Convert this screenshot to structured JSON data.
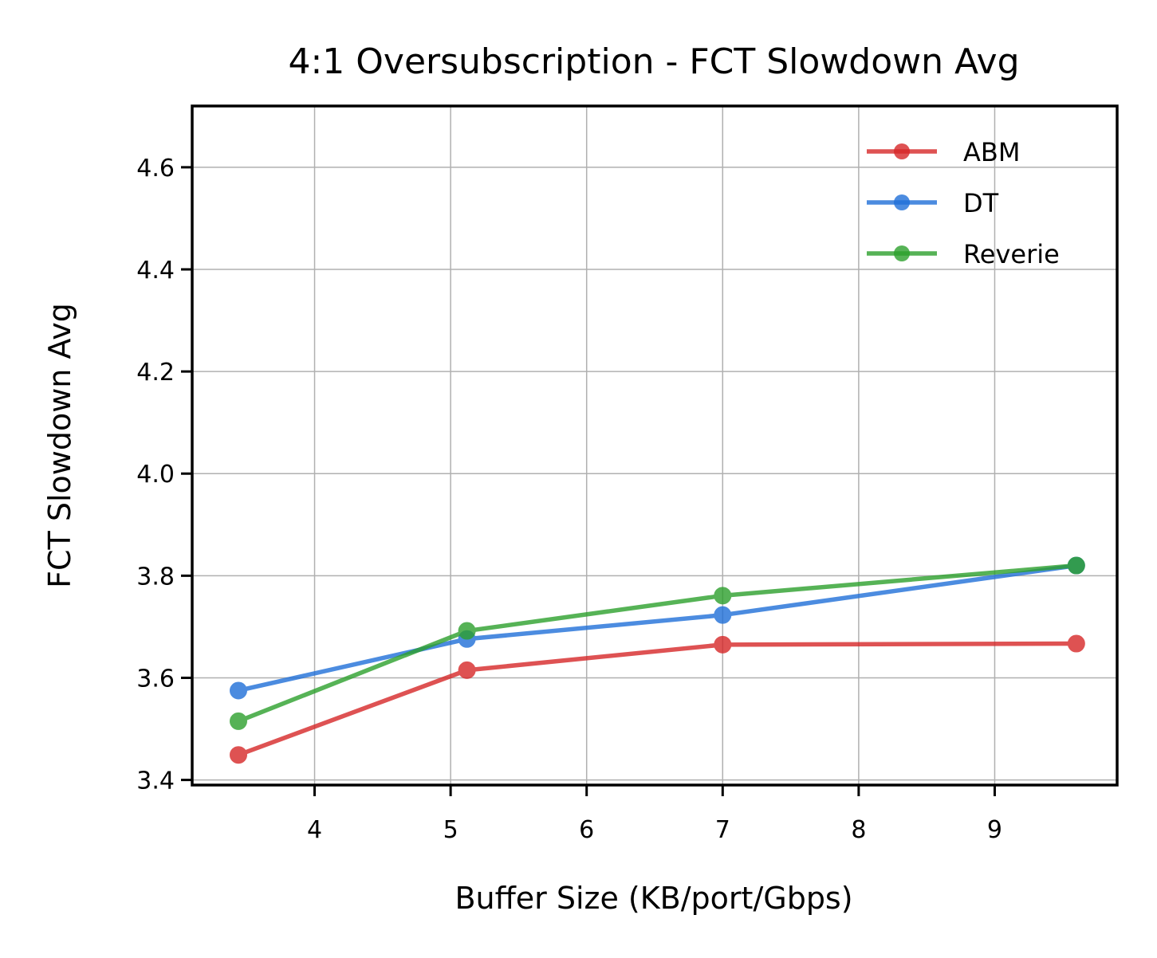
{
  "chart_data": {
    "type": "line",
    "title": "4:1 Oversubscription - FCT Slowdown Avg",
    "xlabel": "Buffer Size (KB/port/Gbps)",
    "ylabel": "FCT Slowdown Avg",
    "xlim": [
      3.1,
      9.9
    ],
    "ylim": [
      3.39,
      4.72
    ],
    "xticks": [
      4,
      5,
      6,
      7,
      8,
      9
    ],
    "xtick_labels": [
      "4",
      "5",
      "6",
      "7",
      "8",
      "9"
    ],
    "yticks": [
      3.4,
      3.6,
      3.8,
      4.0,
      4.2,
      4.4,
      4.6
    ],
    "ytick_labels": [
      "3.4",
      "3.6",
      "3.8",
      "4.0",
      "4.2",
      "4.4",
      "4.6"
    ],
    "grid": true,
    "legend_position": "top-right",
    "series": [
      {
        "name": "ABM",
        "color": "#d62728",
        "x": [
          3.44,
          5.12,
          7.0,
          9.6
        ],
        "y": [
          3.449,
          3.615,
          3.665,
          3.667
        ]
      },
      {
        "name": "DT",
        "color": "#1f6fd8",
        "x": [
          3.44,
          5.12,
          7.0,
          9.6
        ],
        "y": [
          3.575,
          3.676,
          3.723,
          3.82
        ]
      },
      {
        "name": "Reverie",
        "color": "#2ca02c",
        "x": [
          3.44,
          5.12,
          7.0,
          9.6
        ],
        "y": [
          3.515,
          3.692,
          3.761,
          3.82
        ]
      }
    ]
  }
}
